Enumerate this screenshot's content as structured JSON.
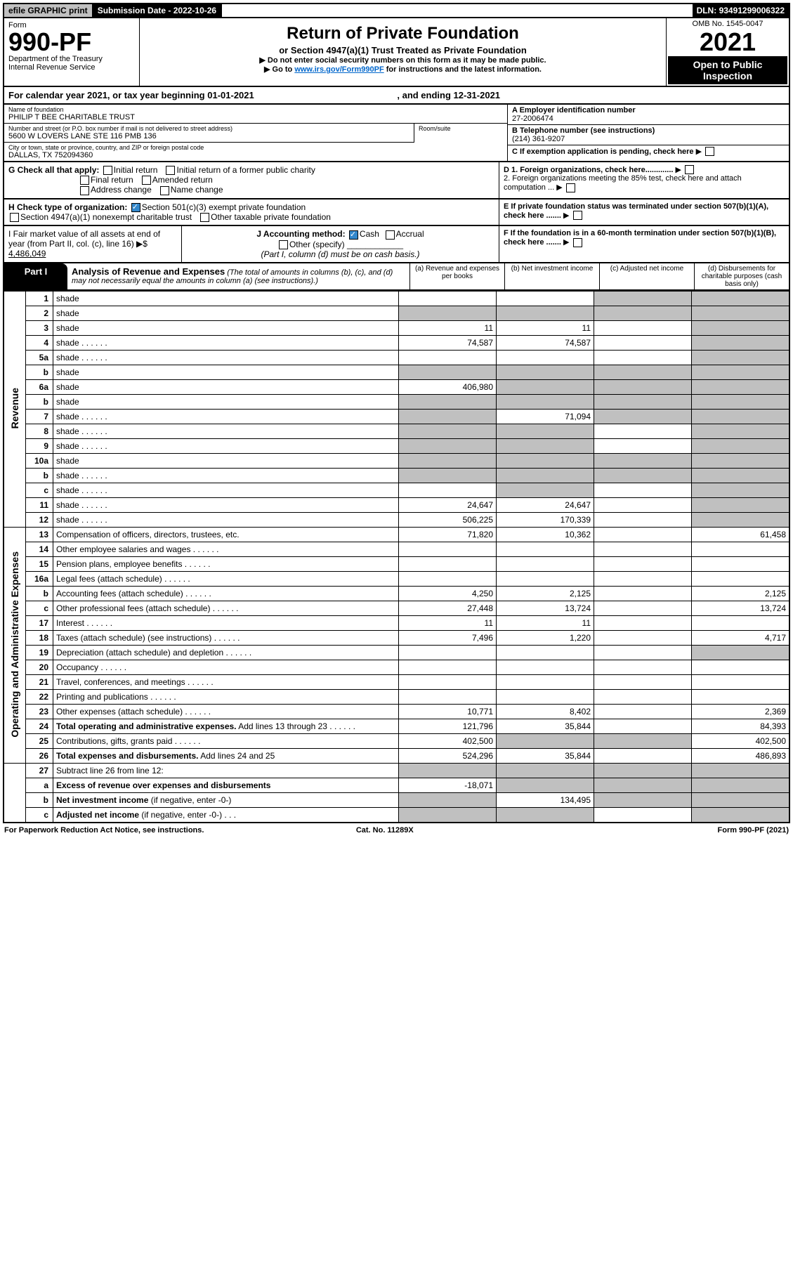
{
  "top": {
    "efile": "efile GRAPHIC print",
    "subdate_label": "Submission Date - ",
    "subdate": "2022-10-26",
    "dln_label": "DLN: ",
    "dln": "93491299006322"
  },
  "header": {
    "form_label": "Form",
    "form_no": "990-PF",
    "dept": "Department of the Treasury",
    "irs": "Internal Revenue Service",
    "title": "Return of Private Foundation",
    "subtitle": "or Section 4947(a)(1) Trust Treated as Private Foundation",
    "note1": "▶ Do not enter social security numbers on this form as it may be made public.",
    "note2_pre": "▶ Go to ",
    "note2_link": "www.irs.gov/Form990PF",
    "note2_post": " for instructions and the latest information.",
    "omb": "OMB No. 1545-0047",
    "year": "2021",
    "inspect": "Open to Public Inspection"
  },
  "cal": {
    "text_pre": "For calendar year 2021, or tax year beginning ",
    "begin": "01-01-2021",
    "mid": " , and ending ",
    "end": "12-31-2021"
  },
  "info": {
    "name_lbl": "Name of foundation",
    "name": "PHILIP T BEE CHARITABLE TRUST",
    "addr_lbl": "Number and street (or P.O. box number if mail is not delivered to street address)",
    "addr": "5600 W LOVERS LANE STE 116 PMB 136",
    "room_lbl": "Room/suite",
    "city_lbl": "City or town, state or province, country, and ZIP or foreign postal code",
    "city": "DALLAS, TX  752094360",
    "ein_lbl": "A Employer identification number",
    "ein": "27-2006474",
    "tel_lbl": "B Telephone number (see instructions)",
    "tel": "(214) 361-9207",
    "c_lbl": "C If exemption application is pending, check here",
    "d1": "D 1. Foreign organizations, check here.............",
    "d2": "2. Foreign organizations meeting the 85% test, check here and attach computation ...",
    "e": "E If private foundation status was terminated under section 507(b)(1)(A), check here .......",
    "f": "F If the foundation is in a 60-month termination under section 507(b)(1)(B), check here .......",
    "g_lbl": "G Check all that apply:",
    "g_opts": [
      "Initial return",
      "Initial return of a former public charity",
      "Final return",
      "Amended return",
      "Address change",
      "Name change"
    ],
    "h_lbl": "H Check type of organization:",
    "h_opt1": "Section 501(c)(3) exempt private foundation",
    "h_opt2": "Section 4947(a)(1) nonexempt charitable trust",
    "h_opt3": "Other taxable private foundation",
    "i_lbl": "I Fair market value of all assets at end of year (from Part II, col. (c), line 16) ▶$ ",
    "i_val": "4,486,049",
    "j_lbl": "J Accounting method:",
    "j_cash": "Cash",
    "j_accrual": "Accrual",
    "j_other": "Other (specify)",
    "j_note": "(Part I, column (d) must be on cash basis.)"
  },
  "part1": {
    "tab": "Part I",
    "title": "Analysis of Revenue and Expenses",
    "note": " (The total of amounts in columns (b), (c), and (d) may not necessarily equal the amounts in column (a) (see instructions).)",
    "col_a": "(a) Revenue and expenses per books",
    "col_b": "(b) Net investment income",
    "col_c": "(c) Adjusted net income",
    "col_d": "(d) Disbursements for charitable purposes (cash basis only)",
    "rot_rev": "Revenue",
    "rot_exp": "Operating and Administrative Expenses"
  },
  "lines": [
    {
      "n": "1",
      "d": "shade",
      "a": "",
      "b": "",
      "c": "shade"
    },
    {
      "n": "2",
      "d": "shade",
      "a": "shade",
      "b": "shade",
      "c": "shade",
      "dotted": true
    },
    {
      "n": "3",
      "d": "shade",
      "a": "11",
      "b": "11",
      "c": ""
    },
    {
      "n": "4",
      "d": "shade",
      "a": "74,587",
      "b": "74,587",
      "c": "",
      "dots": true
    },
    {
      "n": "5a",
      "d": "shade",
      "a": "",
      "b": "",
      "c": "",
      "dots": true
    },
    {
      "n": "b",
      "d": "shade",
      "a": "shade",
      "b": "shade",
      "c": "shade"
    },
    {
      "n": "6a",
      "d": "shade",
      "a": "406,980",
      "b": "shade",
      "c": "shade"
    },
    {
      "n": "b",
      "d": "shade",
      "a": "shade",
      "b": "shade",
      "c": "shade"
    },
    {
      "n": "7",
      "d": "shade",
      "a": "shade",
      "b": "71,094",
      "c": "shade",
      "dots": true
    },
    {
      "n": "8",
      "d": "shade",
      "a": "shade",
      "b": "shade",
      "c": "",
      "dots": true
    },
    {
      "n": "9",
      "d": "shade",
      "a": "shade",
      "b": "shade",
      "c": "",
      "dots": true
    },
    {
      "n": "10a",
      "d": "shade",
      "a": "shade",
      "b": "shade",
      "c": "shade"
    },
    {
      "n": "b",
      "d": "shade",
      "a": "shade",
      "b": "shade",
      "c": "shade",
      "dots": true
    },
    {
      "n": "c",
      "d": "shade",
      "a": "",
      "b": "shade",
      "c": "",
      "dots": true
    },
    {
      "n": "11",
      "d": "shade",
      "a": "24,647",
      "b": "24,647",
      "c": "",
      "dots": true
    },
    {
      "n": "12",
      "d": "shade",
      "a": "506,225",
      "b": "170,339",
      "c": "",
      "dots": true
    }
  ],
  "exp_lines": [
    {
      "n": "13",
      "d": "Compensation of officers, directors, trustees, etc.",
      "a": "71,820",
      "b": "10,362",
      "c": "",
      "dd": "61,458"
    },
    {
      "n": "14",
      "d": "Other employee salaries and wages",
      "a": "",
      "b": "",
      "c": "",
      "dd": "",
      "dots": true
    },
    {
      "n": "15",
      "d": "Pension plans, employee benefits",
      "a": "",
      "b": "",
      "c": "",
      "dd": "",
      "dots": true
    },
    {
      "n": "16a",
      "d": "Legal fees (attach schedule)",
      "a": "",
      "b": "",
      "c": "",
      "dd": "",
      "dots": true
    },
    {
      "n": "b",
      "d": "Accounting fees (attach schedule)",
      "a": "4,250",
      "b": "2,125",
      "c": "",
      "dd": "2,125",
      "dots": true
    },
    {
      "n": "c",
      "d": "Other professional fees (attach schedule)",
      "a": "27,448",
      "b": "13,724",
      "c": "",
      "dd": "13,724",
      "dots": true
    },
    {
      "n": "17",
      "d": "Interest",
      "a": "11",
      "b": "11",
      "c": "",
      "dd": "",
      "dots": true
    },
    {
      "n": "18",
      "d": "Taxes (attach schedule) (see instructions)",
      "a": "7,496",
      "b": "1,220",
      "c": "",
      "dd": "4,717",
      "dots": true
    },
    {
      "n": "19",
      "d": "Depreciation (attach schedule) and depletion",
      "a": "",
      "b": "",
      "c": "",
      "dd": "shade",
      "dots": true
    },
    {
      "n": "20",
      "d": "Occupancy",
      "a": "",
      "b": "",
      "c": "",
      "dd": "",
      "dots": true
    },
    {
      "n": "21",
      "d": "Travel, conferences, and meetings",
      "a": "",
      "b": "",
      "c": "",
      "dd": "",
      "dots": true
    },
    {
      "n": "22",
      "d": "Printing and publications",
      "a": "",
      "b": "",
      "c": "",
      "dd": "",
      "dots": true
    },
    {
      "n": "23",
      "d": "Other expenses (attach schedule)",
      "a": "10,771",
      "b": "8,402",
      "c": "",
      "dd": "2,369",
      "dots": true
    },
    {
      "n": "24",
      "d": "<b>Total operating and administrative expenses.</b> Add lines 13 through 23",
      "a": "121,796",
      "b": "35,844",
      "c": "",
      "dd": "84,393",
      "dots": true
    },
    {
      "n": "25",
      "d": "Contributions, gifts, grants paid",
      "a": "402,500",
      "b": "shade",
      "c": "shade",
      "dd": "402,500",
      "dots": true
    },
    {
      "n": "26",
      "d": "<b>Total expenses and disbursements.</b> Add lines 24 and 25",
      "a": "524,296",
      "b": "35,844",
      "c": "",
      "dd": "486,893"
    }
  ],
  "line27": [
    {
      "n": "27",
      "d": "Subtract line 26 from line 12:",
      "a": "shade",
      "b": "shade",
      "c": "shade",
      "dd": "shade"
    },
    {
      "n": "a",
      "d": "<b>Excess of revenue over expenses and disbursements</b>",
      "a": "-18,071",
      "b": "shade",
      "c": "shade",
      "dd": "shade"
    },
    {
      "n": "b",
      "d": "<b>Net investment income</b> (if negative, enter -0-)",
      "a": "shade",
      "b": "134,495",
      "c": "shade",
      "dd": "shade"
    },
    {
      "n": "c",
      "d": "<b>Adjusted net income</b> (if negative, enter -0-)",
      "a": "shade",
      "b": "shade",
      "c": "",
      "dd": "shade",
      "dots": true
    }
  ],
  "footer": {
    "left": "For Paperwork Reduction Act Notice, see instructions.",
    "mid": "Cat. No. 11289X",
    "right": "Form 990-PF (2021)"
  }
}
